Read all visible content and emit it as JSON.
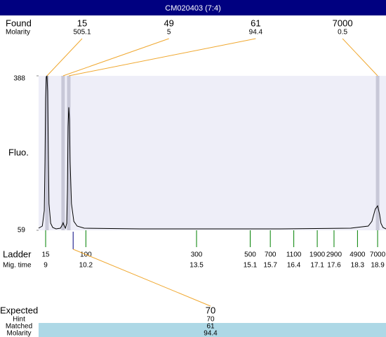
{
  "header": {
    "title": "CM020403 (7:4)"
  },
  "found": {
    "label": "Found",
    "molarity_label": "Molarity",
    "peaks": [
      {
        "size": 15,
        "molarity": 505.1,
        "time": 9.04
      },
      {
        "size": 49,
        "molarity": 5,
        "time": 9.52
      },
      {
        "size": 61,
        "molarity": 94.4,
        "time": 9.69
      },
      {
        "size": 7000,
        "molarity": 0.5,
        "time": 18.9
      }
    ]
  },
  "plot": {
    "y_label": "Fluo.",
    "ylim": [
      59,
      388
    ],
    "yticks": [
      59,
      388
    ],
    "xlim": [
      8.79,
      19.15
    ],
    "trace": {
      "x": [
        8.79,
        8.9,
        8.96,
        8.98,
        9.0,
        9.02,
        9.04,
        9.06,
        9.08,
        9.1,
        9.15,
        9.21,
        9.31,
        9.44,
        9.5,
        9.52,
        9.54,
        9.59,
        9.63,
        9.65,
        9.67,
        9.69,
        9.71,
        9.73,
        9.77,
        9.84,
        9.94,
        10.15,
        11.82,
        16.01,
        18.1,
        18.62,
        18.73,
        18.83,
        18.9,
        18.96,
        19.0,
        19.06,
        19.15
      ],
      "y": [
        63.5,
        68,
        101,
        206,
        340,
        385,
        388,
        355,
        221,
        116,
        74,
        65,
        62,
        63.5,
        71,
        75,
        71,
        63.5,
        74,
        146,
        280,
        321,
        295,
        206,
        116,
        78,
        68,
        63.5,
        62,
        62,
        63.5,
        68,
        78,
        104,
        111,
        93,
        74,
        65,
        62
      ]
    }
  },
  "ladder": {
    "label": "Ladder",
    "time_label": "Mig. time",
    "sizes": [
      15,
      100,
      300,
      500,
      700,
      1100,
      1900,
      2900,
      4900,
      7000
    ],
    "times": [
      9,
      10.2,
      13.5,
      15.1,
      15.7,
      16.4,
      17.1,
      17.6,
      18.3,
      18.9
    ]
  },
  "expected": {
    "label": "Expected",
    "size": 70,
    "time": 9.82,
    "hint_label": "Hint",
    "hint": 70,
    "matched_label": "Matched",
    "matched": 61,
    "molarity_label": "Molarity",
    "molarity": 94.4
  }
}
